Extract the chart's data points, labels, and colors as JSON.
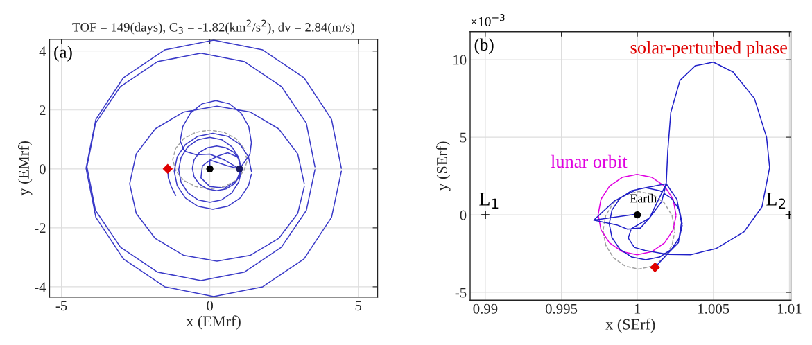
{
  "chart_data": [
    {
      "type": "line",
      "title": "TOF = 149(days), C$_{3}$ = -1.82(km$^{2}$/s$^{2}$), dv = 2.84(m/s)",
      "xlabel": "x (EMrf)",
      "ylabel": "y (EMrf)",
      "xlim": [
        -5.4,
        5.65
      ],
      "ylim": [
        -4.35,
        4.4
      ],
      "xticks": [
        -5,
        0,
        5
      ],
      "yticks": [
        -4,
        -2,
        0,
        2,
        4
      ],
      "grid": true,
      "legend": false,
      "annotations": [
        "(a)"
      ],
      "series": [
        {
          "color": "#a0a0a0",
          "line_style": "dashed",
          "x": [
            1.25,
            1.15,
            0.88,
            0.48,
            0,
            -0.48,
            -0.88,
            -1.15,
            -1.25,
            -1.15,
            -0.88,
            -0.48,
            0,
            0.48,
            0.88,
            1.15,
            1.25
          ],
          "values": [
            0.32,
            0.7,
            1.03,
            1.24,
            1.32,
            1.24,
            1.03,
            0.7,
            0.32,
            -0.06,
            -0.39,
            -0.6,
            -0.68,
            -0.6,
            -0.39,
            -0.06,
            0.25
          ]
        },
        {
          "color": "#3a3ac8",
          "line_style": "solid",
          "x": [
            4.43,
            4.1,
            3.17,
            1.78,
            0.13,
            -1.52,
            -2.91,
            -3.84,
            -4.17,
            -3.84,
            -2.91,
            -1.52,
            0.13,
            1.78,
            3.17,
            4.1,
            4.43,
            null,
            3.54,
            3.25,
            2.41,
            1.17,
            -0.3,
            -1.77,
            -3.01,
            -3.85,
            -4.14,
            -3.85,
            -3.01,
            -1.77,
            -0.3,
            1.17,
            2.41,
            3.25,
            3.54,
            null,
            3.18,
            2.96,
            2.32,
            1.37,
            0.24,
            -0.89,
            -1.84,
            -2.48,
            -2.7,
            -2.48,
            -1.84,
            -0.89,
            0.24,
            1.37,
            2.32,
            2.96,
            3.18,
            null,
            1.0,
            1.35,
            1.4,
            1.31,
            1.05,
            0.66,
            0.2,
            -0.26,
            -0.65,
            -0.91,
            -1.0,
            -0.85,
            -0.45,
            0.0,
            0.5,
            0.95,
            null,
            1.4,
            1.3,
            1.02,
            0.6,
            0.1,
            -0.4,
            -0.82,
            -1.1,
            -1.2,
            -1.1,
            -0.82,
            -0.4,
            0.1,
            0.6,
            1.02,
            1.3,
            1.4,
            null,
            1.05,
            0.97,
            0.74,
            0.4,
            0.0,
            -0.4,
            -0.74,
            -0.97,
            -1.05,
            -0.97,
            -0.74,
            -0.4,
            0.0,
            0.4,
            0.74,
            0.97,
            1.05,
            null,
            1.05,
            0.99,
            0.81,
            0.54,
            0.23,
            -0.08,
            -0.35,
            -0.53,
            -0.59,
            -0.53,
            -0.35,
            -0.08,
            0.23,
            0.54,
            0.81,
            0.99,
            1.05,
            null,
            0.0,
            0.0,
            -0.25,
            -0.3,
            0.0,
            0.5,
            0.9,
            1.05,
            0.95,
            0.6,
            0.3,
            0.0,
            0.3,
            0.6,
            1.0,
            null,
            -1.42,
            -1.4,
            -1.3,
            -1.15
          ],
          "values": [
            0.02,
            1.68,
            3.1,
            4.04,
            4.37,
            4.04,
            3.1,
            1.68,
            0.02,
            -1.64,
            -3.06,
            -4.0,
            -4.33,
            -4.0,
            -3.06,
            -1.64,
            -0.08,
            null,
            0.07,
            1.55,
            2.8,
            3.64,
            3.93,
            3.64,
            2.8,
            1.55,
            0.07,
            -1.41,
            -2.66,
            -3.5,
            -3.79,
            -3.5,
            -2.66,
            -1.41,
            -0.03,
            null,
            -0.5,
            0.51,
            1.36,
            1.93,
            2.13,
            1.93,
            1.36,
            0.51,
            -0.5,
            -1.51,
            -2.36,
            -2.93,
            -3.13,
            -2.93,
            -2.36,
            -1.51,
            -0.6,
            null,
            0.0,
            0.5,
            0.9,
            1.44,
            1.9,
            2.21,
            2.32,
            2.21,
            1.9,
            1.44,
            0.95,
            0.6,
            0.48,
            0.5,
            0.3,
            0.03,
            null,
            -0.08,
            0.41,
            0.83,
            1.11,
            1.21,
            1.11,
            0.83,
            0.41,
            -0.08,
            -0.57,
            -0.99,
            -1.27,
            -1.37,
            -1.27,
            -0.99,
            -0.57,
            -0.18,
            null,
            -0.03,
            0.39,
            0.75,
            0.99,
            1.07,
            0.99,
            0.75,
            0.39,
            -0.03,
            -0.45,
            -0.81,
            -1.05,
            -1.13,
            -1.05,
            -0.81,
            -0.45,
            -0.13,
            null,
            0.02,
            0.31,
            0.56,
            0.72,
            0.78,
            0.72,
            0.56,
            0.31,
            0.02,
            -0.27,
            -0.52,
            -0.68,
            -0.74,
            -0.68,
            -0.52,
            -0.27,
            -0.08,
            null,
            0.0,
            0.3,
            0.1,
            -0.3,
            -0.6,
            -0.65,
            -0.4,
            0.0,
            0.4,
            0.55,
            0.45,
            0.3,
            0.2,
            0.1,
            0.0,
            null,
            0.0,
            -0.3,
            -0.6,
            -0.9
          ]
        },
        {
          "type": "scatter",
          "color": "#000000",
          "marker": "circle",
          "x": [
            0
          ],
          "values": [
            0
          ]
        },
        {
          "type": "scatter",
          "color": "#1a1a60",
          "marker": "circle",
          "x": [
            1.0
          ],
          "values": [
            0
          ]
        },
        {
          "type": "scatter",
          "color": "#e00000",
          "marker": "diamond",
          "x": [
            -1.42
          ],
          "values": [
            0
          ]
        }
      ]
    },
    {
      "type": "line",
      "xlabel": "x (SErf)",
      "ylabel": "y (SErf)",
      "xlim": [
        0.989,
        1.0101
      ],
      "ylim": [
        -5.5,
        11.8
      ],
      "xticks": [
        0.99,
        0.995,
        1,
        1.005,
        1.01
      ],
      "yticks": [
        -5,
        0,
        5,
        10
      ],
      "grid": true,
      "legend": false,
      "annotations": [
        "(b)",
        "×10$^{−3}$",
        "solar-perturbed phase",
        "lunar orbit",
        "Earth",
        "L$_{1}$",
        "L$_{2}$"
      ],
      "series": [
        {
          "color": "#a0a0a0",
          "line_style": "dashed",
          "x": [
            1.00246,
            1.00228,
            1.00177,
            1.001,
            1.0001,
            0.9992,
            0.99843,
            0.99792,
            0.99774,
            0.99792,
            0.99843,
            0.9992,
            1.0001,
            1.001,
            1.00177,
            1.00228,
            1.00246
          ],
          "values": [
            -1.0,
            -0.04,
            0.77,
            1.31,
            1.5,
            1.31,
            0.77,
            -0.04,
            -1.0,
            -1.96,
            -2.77,
            -3.31,
            -3.5,
            -3.31,
            -2.77,
            -1.96,
            -1.1
          ]
        },
        {
          "color": "#e000e0",
          "line_style": "solid",
          "x": [
            1.00254,
            1.00235,
            1.00179,
            1.00096,
            0.99998,
            0.999,
            0.99817,
            0.99761,
            0.99742,
            0.99761,
            0.99817,
            0.999,
            0.99998,
            1.00096,
            1.00179,
            1.00235,
            1.00254
          ],
          "values": [
            0.02,
            1.01,
            1.85,
            2.41,
            2.61,
            2.41,
            1.85,
            1.01,
            0.02,
            -0.97,
            -1.81,
            -2.37,
            -2.57,
            -2.37,
            -1.81,
            -0.97,
            -0.08
          ]
        },
        {
          "color": "#2020c8",
          "line_style": "solid",
          "x": [
            1.00295,
            1.00277,
            1.00225,
            1.00147,
            1.00055,
            0.99963,
            0.99885,
            0.99833,
            0.99815,
            0.99833,
            0.99885,
            0.99963,
            1.00055,
            1.00147,
            1.00225,
            1.00277,
            1.00295,
            null,
            0.99995,
            0.99713,
            0.99865,
            0.99935,
            1.0002,
            1.0008,
            1.0016,
            1.0019,
            1.002,
            1.0022,
            1.0028,
            1.0038,
            1.005,
            1.0063,
            1.0077,
            1.0085,
            1.0087,
            1.0082,
            1.007,
            1.0052,
            1.0035,
            1.002,
            1.0005,
            0.9998,
            0.9994,
            0.9996,
            1.0008,
            1.0019,
            null,
            0.99713,
            0.9985,
            1.0,
            1.0019,
            1.0026,
            1.0029,
            1.0027,
            1.002,
            1.00116
          ],
          "values": [
            -0.58,
            0.31,
            1.06,
            1.56,
            1.74,
            1.56,
            1.06,
            0.31,
            -0.58,
            -1.47,
            -2.22,
            -2.72,
            -2.9,
            -2.72,
            -2.22,
            -1.47,
            -0.68,
            null,
            0.05,
            -0.34,
            -0.65,
            -0.92,
            -0.85,
            -0.2,
            0.85,
            2.0,
            4.1,
            6.6,
            8.66,
            9.6,
            9.84,
            9.2,
            7.5,
            5.0,
            3.05,
            0.52,
            -1.11,
            -2.17,
            -2.57,
            -2.55,
            -2.3,
            -2.1,
            -1.5,
            -0.9,
            -0.2,
            2.0,
            null,
            -0.34,
            0.9,
            1.65,
            2.0,
            1.0,
            -0.5,
            -1.8,
            -2.5,
            -3.39
          ]
        },
        {
          "type": "scatter",
          "color": "#000000",
          "marker": "circle",
          "x": [
            1.0
          ],
          "values": [
            0.0
          ]
        },
        {
          "type": "scatter",
          "color": "#000000",
          "marker": "cross",
          "x": [
            0.99,
            1.01
          ],
          "values": [
            0.0,
            0.0
          ]
        },
        {
          "type": "scatter",
          "color": "#e00000",
          "marker": "diamond",
          "x": [
            1.00116
          ],
          "values": [
            -3.39
          ]
        }
      ]
    }
  ]
}
